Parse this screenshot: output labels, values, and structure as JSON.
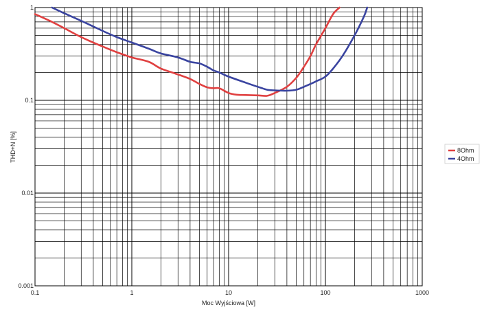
{
  "chart_data": {
    "type": "line",
    "xscale": "log",
    "yscale": "log",
    "xlabel": "Moc Wyjściowa [W]",
    "ylabel": "THD+N [%]",
    "xlim": [
      0.1,
      1000
    ],
    "ylim": [
      0.001,
      1
    ],
    "x_ticks": [
      "0.1",
      "1",
      "10",
      "100",
      "1000"
    ],
    "y_ticks": [
      "0.001",
      "0.01",
      "0.1",
      "1"
    ],
    "grid": true,
    "legend_position": "right",
    "series": [
      {
        "name": "8Ohm",
        "color": "#e04040",
        "x": [
          0.1,
          0.15,
          0.2,
          0.3,
          0.5,
          0.7,
          1,
          1.5,
          2,
          3,
          4,
          5,
          6,
          7,
          8,
          10,
          12,
          15,
          20,
          25,
          30,
          40,
          50,
          60,
          70,
          80,
          100,
          120,
          140
        ],
        "y": [
          0.85,
          0.7,
          0.6,
          0.48,
          0.38,
          0.33,
          0.29,
          0.26,
          0.22,
          0.19,
          0.17,
          0.15,
          0.138,
          0.135,
          0.135,
          0.12,
          0.115,
          0.114,
          0.113,
          0.112,
          0.12,
          0.14,
          0.175,
          0.23,
          0.3,
          0.4,
          0.6,
          0.85,
          1.0
        ]
      },
      {
        "name": "4Ohm",
        "color": "#3a44a0",
        "x": [
          0.15,
          0.2,
          0.3,
          0.5,
          0.7,
          1,
          1.5,
          2,
          3,
          4,
          5,
          6,
          7,
          8,
          10,
          15,
          20,
          25,
          30,
          40,
          50,
          60,
          70,
          80,
          100,
          120,
          150,
          200,
          250,
          270
        ],
        "y": [
          1.0,
          0.87,
          0.72,
          0.56,
          0.48,
          0.42,
          0.36,
          0.32,
          0.29,
          0.26,
          0.25,
          0.23,
          0.21,
          0.2,
          0.18,
          0.155,
          0.14,
          0.13,
          0.128,
          0.127,
          0.13,
          0.14,
          0.15,
          0.16,
          0.18,
          0.22,
          0.3,
          0.5,
          0.8,
          1.0
        ]
      }
    ]
  }
}
